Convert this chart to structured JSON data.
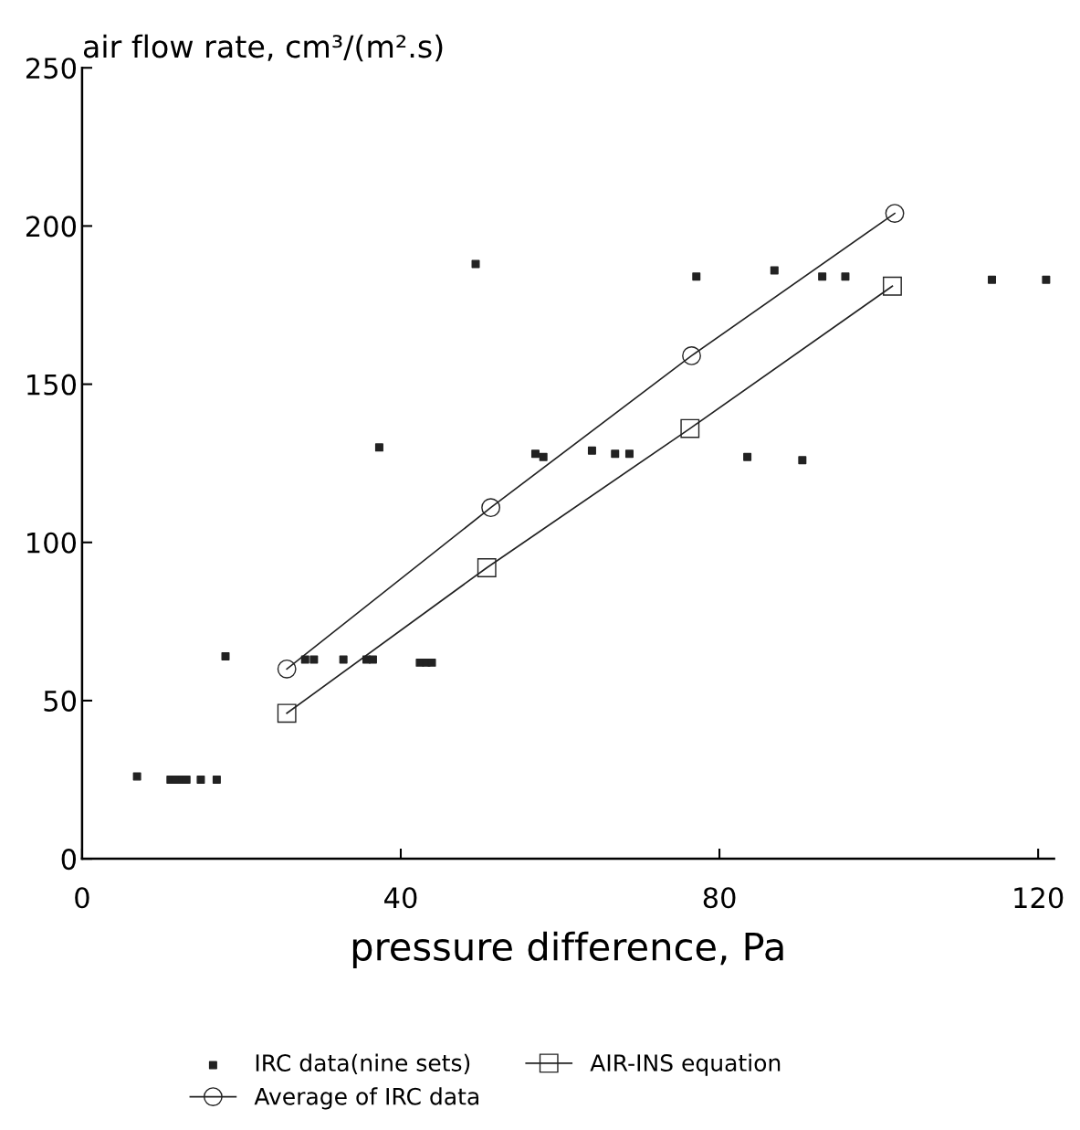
{
  "chart_data": {
    "type": "scatter",
    "ylabel": "air flow rate, cm³/(m².s)",
    "xlabel": "pressure difference, Pa",
    "xlim": [
      0,
      122
    ],
    "xticks": [
      0,
      40,
      80,
      120
    ],
    "ylim": [
      0,
      250
    ],
    "yticks": [
      0,
      50,
      100,
      150,
      200,
      250
    ],
    "grid": false,
    "legend": "bottom",
    "series": [
      {
        "name": "IRC data(nine sets)",
        "marker": "square",
        "color": "#222222",
        "x": [
          6.9,
          11.1,
          11.7,
          12.5,
          13.1,
          14.9,
          16.9,
          18.0,
          28.0,
          29.1,
          32.8,
          35.7,
          36.5,
          37.3,
          42.4,
          43.2,
          43.9,
          49.4,
          56.9,
          57.9,
          64.0,
          66.9,
          68.7,
          77.1,
          83.5,
          86.9,
          90.4,
          92.9,
          95.8,
          114.2,
          121
        ],
        "values": [
          26,
          25,
          25,
          25,
          25,
          25,
          25,
          64,
          63,
          63,
          63,
          63,
          63,
          130,
          62,
          62,
          62,
          188,
          128,
          127,
          129,
          128,
          128,
          184,
          127,
          186,
          126,
          184,
          184,
          183,
          183
        ]
      },
      {
        "name": "Average of IRC data",
        "type": "line",
        "marker": "circle",
        "color": "#222222",
        "x": [
          25.7,
          51.3,
          76.5,
          102
        ],
        "values": [
          60,
          111,
          159,
          204
        ]
      },
      {
        "name": "AIR-INS equation",
        "type": "line",
        "marker": "square",
        "color": "#222222",
        "x": [
          25.7,
          50.8,
          76.3,
          101.7
        ],
        "values": [
          46,
          92,
          136,
          181
        ]
      }
    ]
  }
}
